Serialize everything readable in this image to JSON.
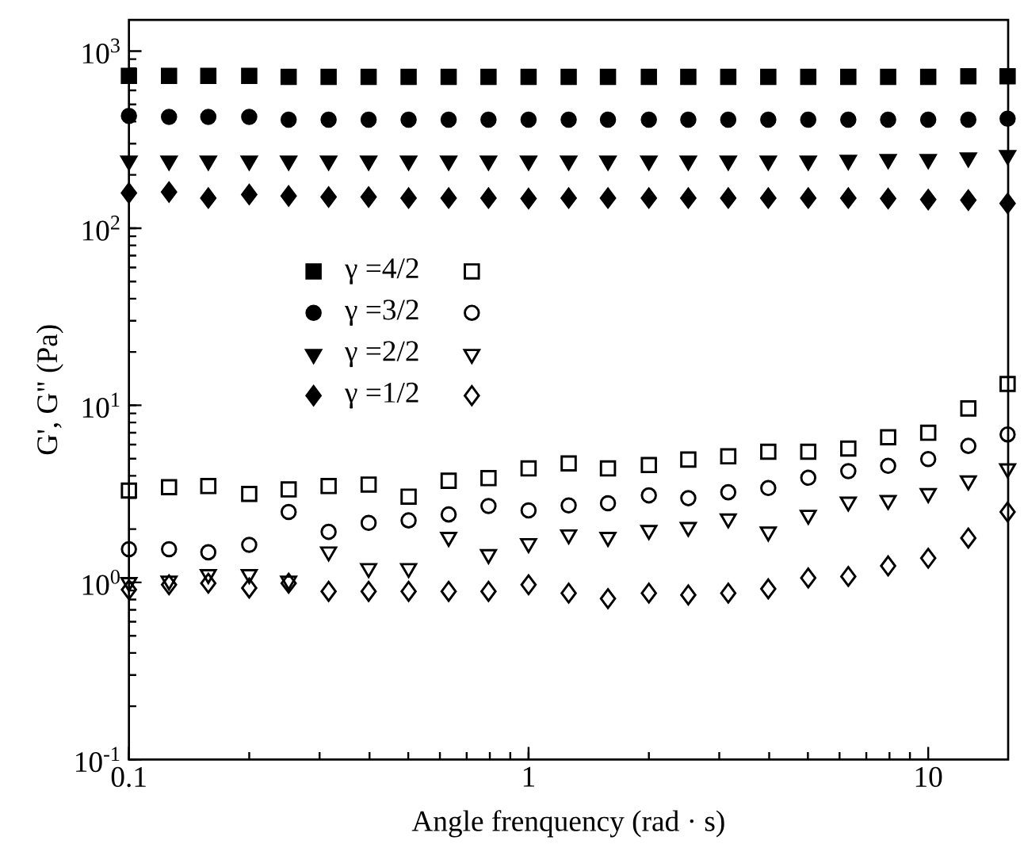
{
  "chart_data": {
    "type": "scatter",
    "xlabel": "Angle frenquency (rad · s)",
    "ylabel": "G', G\" (Pa)",
    "x": [
      0.1,
      0.126,
      0.158,
      0.2,
      0.251,
      0.316,
      0.398,
      0.501,
      0.631,
      0.794,
      1,
      1.26,
      1.58,
      2,
      2.51,
      3.16,
      3.98,
      5.01,
      6.31,
      7.94,
      10,
      12.6,
      15.8
    ],
    "log": "xy",
    "xlim": [
      0.1,
      15.85
    ],
    "ylim": [
      0.1,
      1500
    ],
    "xticks": [
      0.1,
      1,
      10
    ],
    "yticks": [
      {
        "value": 0.1,
        "label": "10$^{-1}$"
      },
      {
        "value": 1,
        "label": "10$^{0}$"
      },
      {
        "value": 10,
        "label": "10$^{1}$"
      },
      {
        "value": 100,
        "label": "10$^{2}$"
      },
      {
        "value": 1000,
        "label": "10$^{3}$"
      }
    ],
    "legend": "top left",
    "grid": false,
    "series": [
      {
        "name": "γ =4/2",
        "color": "#000000",
        "marker": "square",
        "values": [
          725,
          725,
          725,
          725,
          715,
          715,
          715,
          715,
          715,
          715,
          715,
          715,
          715,
          715,
          715,
          715,
          715,
          715,
          715,
          715,
          715,
          720,
          720
        ]
      },
      {
        "name": "γ =3/2",
        "color": "#000000",
        "marker": "circle",
        "values": [
          430,
          425,
          425,
          425,
          410,
          410,
          410,
          410,
          410,
          410,
          410,
          410,
          410,
          410,
          410,
          410,
          410,
          410,
          410,
          410,
          410,
          410,
          415
        ]
      },
      {
        "name": "γ =2/2",
        "color": "#000000",
        "marker": "triangle",
        "values": [
          240,
          240,
          240,
          240,
          240,
          240,
          240,
          240,
          240,
          240,
          240,
          240,
          240,
          240,
          240,
          240,
          240,
          240,
          242,
          245,
          245,
          250,
          258
        ]
      },
      {
        "name": "γ =1/2",
        "color": "#000000",
        "marker": "diamond",
        "values": [
          158,
          160,
          148,
          155,
          152,
          150,
          150,
          148,
          148,
          148,
          147,
          148,
          148,
          148,
          148,
          148,
          148,
          148,
          148,
          147,
          145,
          144,
          138
        ]
      },
      {
        "color": "#000000",
        "marker": "square",
        "values": [
          3.3,
          3.45,
          3.5,
          3.16,
          3.35,
          3.5,
          3.57,
          3.05,
          3.75,
          3.88,
          4.4,
          4.7,
          4.4,
          4.6,
          4.94,
          5.15,
          5.47,
          5.47,
          5.7,
          6.6,
          7.0,
          9.6,
          13.2
        ]
      },
      {
        "color": "#000000",
        "marker": "circle",
        "values": [
          1.54,
          1.54,
          1.48,
          1.63,
          2.5,
          1.93,
          2.17,
          2.24,
          2.42,
          2.7,
          2.55,
          2.72,
          2.8,
          3.1,
          2.99,
          3.23,
          3.41,
          3.9,
          4.25,
          4.55,
          4.97,
          5.9,
          6.85
        ]
      },
      {
        "color": "#000000",
        "marker": "triangle",
        "values": [
          1.0,
          1.02,
          1.11,
          1.11,
          1.02,
          1.49,
          1.2,
          1.2,
          1.8,
          1.44,
          1.66,
          1.86,
          1.8,
          1.97,
          2.05,
          2.29,
          1.93,
          2.4,
          2.85,
          2.91,
          3.18,
          3.75,
          4.39
        ]
      },
      {
        "color": "#000000",
        "marker": "diamond",
        "values": [
          0.91,
          0.97,
          0.99,
          0.93,
          0.99,
          0.89,
          0.89,
          0.89,
          0.89,
          0.89,
          0.97,
          0.87,
          0.81,
          0.87,
          0.85,
          0.87,
          0.92,
          1.06,
          1.08,
          1.24,
          1.37,
          1.78,
          2.5
        ]
      }
    ]
  }
}
